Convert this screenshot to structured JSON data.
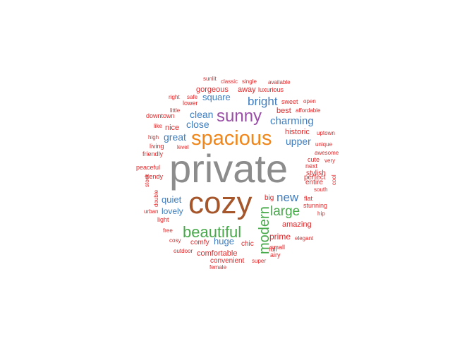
{
  "palette": {
    "gray": "#8c8c8c",
    "brown": "#a6562b",
    "orange": "#f0861a",
    "purple": "#9a4fa7",
    "green": "#47a94a",
    "blue": "#3e7dbf",
    "red": "#e0282a"
  },
  "words": [
    {
      "text": "private",
      "color": "gray"
    },
    {
      "text": "cozy",
      "color": "brown"
    },
    {
      "text": "spacious",
      "color": "orange"
    },
    {
      "text": "sunny",
      "color": "purple"
    },
    {
      "text": "beautiful",
      "color": "green"
    },
    {
      "text": "modern",
      "color": "green"
    },
    {
      "text": "large",
      "color": "green"
    },
    {
      "text": "bright",
      "color": "blue"
    },
    {
      "text": "new",
      "color": "blue"
    },
    {
      "text": "charming",
      "color": "blue"
    },
    {
      "text": "clean",
      "color": "blue"
    },
    {
      "text": "square",
      "color": "blue"
    },
    {
      "text": "close",
      "color": "blue"
    },
    {
      "text": "great",
      "color": "blue"
    },
    {
      "text": "upper",
      "color": "blue"
    },
    {
      "text": "quiet",
      "color": "blue"
    },
    {
      "text": "lovely",
      "color": "blue"
    },
    {
      "text": "huge",
      "color": "blue"
    },
    {
      "text": "historic",
      "color": "red"
    },
    {
      "text": "gorgeous",
      "color": "red"
    },
    {
      "text": "away",
      "color": "red"
    },
    {
      "text": "best",
      "color": "red"
    },
    {
      "text": "nice",
      "color": "red"
    },
    {
      "text": "amazing",
      "color": "red"
    },
    {
      "text": "prime",
      "color": "red"
    },
    {
      "text": "comfortable",
      "color": "red"
    },
    {
      "text": "perfect",
      "color": "red"
    },
    {
      "text": "entire",
      "color": "red"
    },
    {
      "text": "stylish",
      "color": "red"
    },
    {
      "text": "comfy",
      "color": "red"
    },
    {
      "text": "chic",
      "color": "red"
    },
    {
      "text": "convenient",
      "color": "red"
    },
    {
      "text": "big",
      "color": "red"
    },
    {
      "text": "full",
      "color": "red"
    },
    {
      "text": "small",
      "color": "red"
    },
    {
      "text": "airy",
      "color": "red"
    },
    {
      "text": "super",
      "color": "red"
    },
    {
      "text": "female",
      "color": "red"
    },
    {
      "text": "outdoor",
      "color": "red"
    },
    {
      "text": "cosy",
      "color": "red"
    },
    {
      "text": "free",
      "color": "red"
    },
    {
      "text": "light",
      "color": "red"
    },
    {
      "text": "urban",
      "color": "red"
    },
    {
      "text": "double",
      "color": "red"
    },
    {
      "text": "stock",
      "color": "red"
    },
    {
      "text": "trendy",
      "color": "red"
    },
    {
      "text": "peaceful",
      "color": "red"
    },
    {
      "text": "friendly",
      "color": "red"
    },
    {
      "text": "living",
      "color": "red"
    },
    {
      "text": "high",
      "color": "red"
    },
    {
      "text": "level",
      "color": "red"
    },
    {
      "text": "like",
      "color": "red"
    },
    {
      "text": "downtown",
      "color": "red"
    },
    {
      "text": "little",
      "color": "red"
    },
    {
      "text": "right",
      "color": "red"
    },
    {
      "text": "safe",
      "color": "red"
    },
    {
      "text": "lower",
      "color": "red"
    },
    {
      "text": "sunlit",
      "color": "red"
    },
    {
      "text": "classic",
      "color": "red"
    },
    {
      "text": "single",
      "color": "red"
    },
    {
      "text": "luxurious",
      "color": "red"
    },
    {
      "text": "available",
      "color": "red"
    },
    {
      "text": "sweet",
      "color": "red"
    },
    {
      "text": "open",
      "color": "red"
    },
    {
      "text": "affordable",
      "color": "red"
    },
    {
      "text": "uptown",
      "color": "red"
    },
    {
      "text": "unique",
      "color": "red"
    },
    {
      "text": "awesome",
      "color": "red"
    },
    {
      "text": "cute",
      "color": "red"
    },
    {
      "text": "very",
      "color": "red"
    },
    {
      "text": "next",
      "color": "red"
    },
    {
      "text": "cool",
      "color": "red"
    },
    {
      "text": "south",
      "color": "red"
    },
    {
      "text": "flat",
      "color": "red"
    },
    {
      "text": "stunning",
      "color": "red"
    },
    {
      "text": "hip",
      "color": "red"
    },
    {
      "text": "elegant",
      "color": "red"
    }
  ]
}
